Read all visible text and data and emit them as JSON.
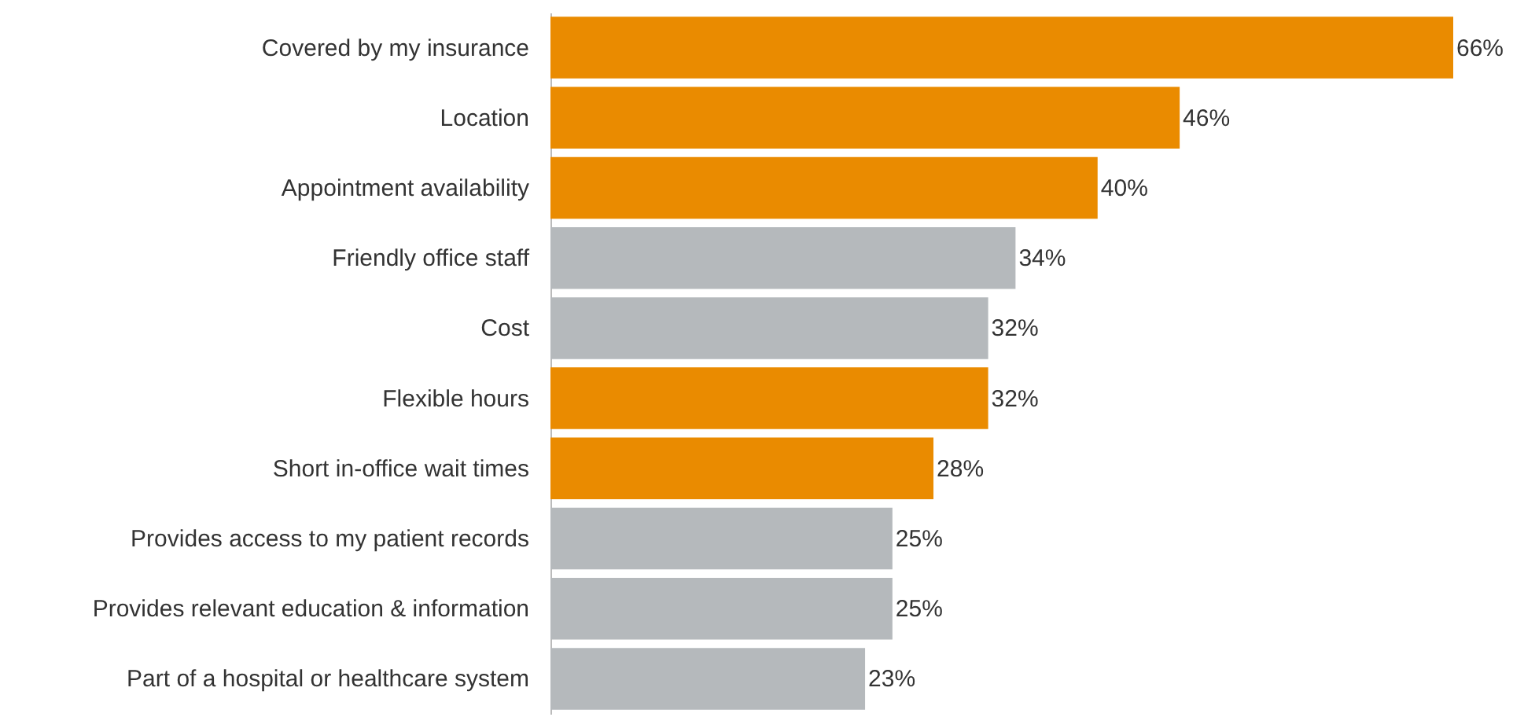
{
  "chart_data": {
    "type": "bar",
    "orientation": "horizontal",
    "categories": [
      "Covered by my insurance",
      "Location",
      "Appointment availability",
      "Friendly office staff",
      "Cost",
      "Flexible hours",
      "Short in-office wait times",
      "Provides access to my patient records",
      "Provides relevant education & information",
      "Part of a hospital or healthcare system"
    ],
    "values": [
      66,
      46,
      40,
      34,
      32,
      32,
      28,
      25,
      25,
      23
    ],
    "value_labels": [
      "66%",
      "46%",
      "40%",
      "34%",
      "32%",
      "32%",
      "28%",
      "25%",
      "25%",
      "23%"
    ],
    "colors": [
      "#ea8b00",
      "#ea8b00",
      "#ea8b00",
      "#b5b9bc",
      "#b5b9bc",
      "#ea8b00",
      "#ea8b00",
      "#b5b9bc",
      "#b5b9bc",
      "#b5b9bc"
    ]
  }
}
